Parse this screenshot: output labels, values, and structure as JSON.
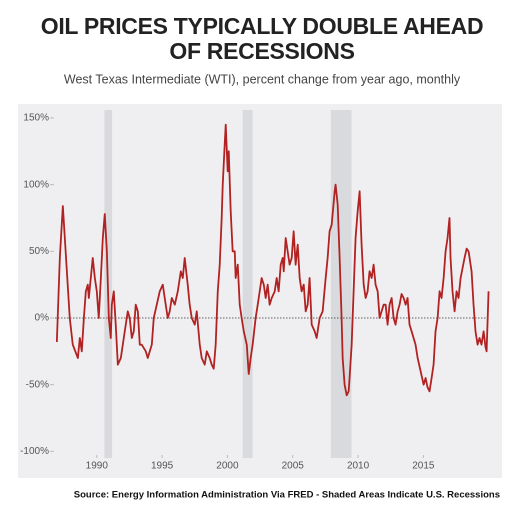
{
  "chart_data": {
    "type": "line",
    "title": [
      "OIL PRICES TYPICALLY DOUBLE AHEAD",
      "OF RECESSIONS"
    ],
    "subtitle": "West Texas Intermediate (WTI), percent change from year ago, monthly",
    "source": "Source: Energy Information Administration Via FRED - Shaded Areas Indicate U.S. Recessions",
    "color": "#b22222",
    "recessions": [
      [
        1990.58,
        1991.17
      ],
      [
        2001.17,
        2001.92
      ],
      [
        2007.92,
        2009.5
      ]
    ],
    "reference_line": 0,
    "xlim": [
      1986.8,
      2020.1
    ],
    "xticks": [
      1990,
      1995,
      2000,
      2005,
      2010,
      2015
    ],
    "ylim": [
      -105,
      156
    ],
    "yticks": [
      {
        "value": -100,
        "label": "-100%"
      },
      {
        "value": -50,
        "label": "-50%"
      },
      {
        "value": 0,
        "label": "0%"
      },
      {
        "value": 50,
        "label": "50%"
      },
      {
        "value": 100,
        "label": "100%"
      },
      {
        "value": 150,
        "label": "150%"
      }
    ],
    "x": [
      1986.94,
      1987.17,
      1987.4,
      1987.93,
      1988.16,
      1988.55,
      1988.7,
      1988.85,
      1989.01,
      1989.16,
      1989.31,
      1989.39,
      1989.54,
      1989.69,
      1989.85,
      1990.0,
      1990.15,
      1990.31,
      1990.46,
      1990.61,
      1990.77,
      1990.92,
      1991.07,
      1991.15,
      1991.3,
      1991.45,
      1991.61,
      1991.84,
      1991.99,
      1992.14,
      1992.37,
      1992.52,
      1992.68,
      1992.83,
      1992.98,
      1993.14,
      1993.29,
      1993.44,
      1993.75,
      1993.9,
      1994.21,
      1994.36,
      1994.59,
      1994.82,
      1995.05,
      1995.2,
      1995.43,
      1995.58,
      1995.74,
      1995.97,
      1996.2,
      1996.43,
      1996.58,
      1996.73,
      1996.96,
      1997.11,
      1997.27,
      1997.5,
      1997.65,
      1997.88,
      1998.03,
      1998.26,
      1998.42,
      1998.64,
      1998.8,
      1998.95,
      1999.1,
      1999.26,
      1999.41,
      1999.56,
      1999.64,
      1999.79,
      1999.87,
      2000.02,
      2000.1,
      2000.25,
      2000.4,
      2000.56,
      2000.63,
      2000.79,
      2000.94,
      2001.09,
      2001.25,
      2001.48,
      2001.63,
      2001.78,
      2001.93,
      2002.16,
      2002.32,
      2002.47,
      2002.62,
      2002.78,
      2002.93,
      2003.08,
      2003.23,
      2003.39,
      2003.62,
      2003.77,
      2003.92,
      2004.08,
      2004.23,
      2004.31,
      2004.46,
      2004.61,
      2004.76,
      2004.92,
      2005.07,
      2005.22,
      2005.38,
      2005.53,
      2005.68,
      2005.84,
      2005.99,
      2006.14,
      2006.29,
      2006.45,
      2006.68,
      2006.83,
      2007.06,
      2007.29,
      2007.52,
      2007.67,
      2007.82,
      2007.98,
      2008.21,
      2008.28,
      2008.44,
      2008.59,
      2008.74,
      2008.82,
      2008.97,
      2009.13,
      2009.28,
      2009.35,
      2009.51,
      2009.66,
      2009.81,
      2009.97,
      2010.12,
      2010.27,
      2010.43,
      2010.58,
      2010.73,
      2010.88,
      2011.04,
      2011.19,
      2011.34,
      2011.5,
      2011.65,
      2011.8,
      2011.96,
      2012.11,
      2012.26,
      2012.41,
      2012.57,
      2012.72,
      2012.87,
      2013.03,
      2013.18,
      2013.33,
      2013.49,
      2013.64,
      2013.79,
      2013.94,
      2014.1,
      2014.25,
      2014.4,
      2014.56,
      2014.79,
      2015.02,
      2015.17,
      2015.32,
      2015.47,
      2015.63,
      2015.78,
      2015.93,
      2016.09,
      2016.24,
      2016.39,
      2016.55,
      2016.7,
      2016.85,
      2017.0,
      2017.08,
      2017.23,
      2017.39,
      2017.54,
      2017.69,
      2017.85,
      2018.15,
      2018.31,
      2018.46,
      2018.69,
      2018.84,
      2018.99,
      2019.15,
      2019.3,
      2019.45,
      2019.61,
      2019.76,
      2019.84,
      2019.99
    ],
    "values": [
      -18,
      45,
      84,
      0,
      -20,
      -30,
      -15,
      -25,
      0,
      20,
      25,
      15,
      30,
      45,
      30,
      20,
      0,
      30,
      60,
      78,
      50,
      0,
      -15,
      10,
      20,
      -5,
      -35,
      -30,
      -20,
      -10,
      5,
      0,
      -15,
      -10,
      10,
      5,
      -20,
      -20,
      -25,
      -30,
      -20,
      0,
      10,
      20,
      25,
      15,
      0,
      5,
      15,
      10,
      20,
      35,
      30,
      45,
      25,
      10,
      0,
      -5,
      5,
      -20,
      -30,
      -35,
      -25,
      -30,
      -35,
      -38,
      -20,
      20,
      40,
      75,
      100,
      130,
      145,
      110,
      125,
      80,
      50,
      50,
      30,
      40,
      10,
      0,
      -10,
      -20,
      -42,
      -30,
      -20,
      0,
      10,
      20,
      30,
      25,
      15,
      25,
      10,
      15,
      20,
      30,
      20,
      40,
      45,
      35,
      60,
      50,
      40,
      45,
      65,
      40,
      55,
      30,
      20,
      25,
      5,
      10,
      30,
      -5,
      -10,
      -15,
      0,
      5,
      30,
      45,
      65,
      70,
      95,
      100,
      85,
      45,
      0,
      -30,
      -50,
      -58,
      -55,
      -45,
      -20,
      20,
      60,
      80,
      95,
      55,
      25,
      15,
      20,
      35,
      30,
      40,
      25,
      20,
      0,
      5,
      10,
      10,
      -5,
      10,
      15,
      0,
      -5,
      5,
      10,
      18,
      15,
      10,
      15,
      -5,
      -10,
      -15,
      -20,
      -30,
      -40,
      -50,
      -45,
      -52,
      -55,
      -45,
      -35,
      -10,
      0,
      20,
      15,
      30,
      50,
      60,
      75,
      45,
      20,
      5,
      20,
      15,
      30,
      45,
      52,
      50,
      35,
      10,
      -10,
      -20,
      -15,
      -20,
      -10,
      -22,
      -25,
      20
    ]
  }
}
